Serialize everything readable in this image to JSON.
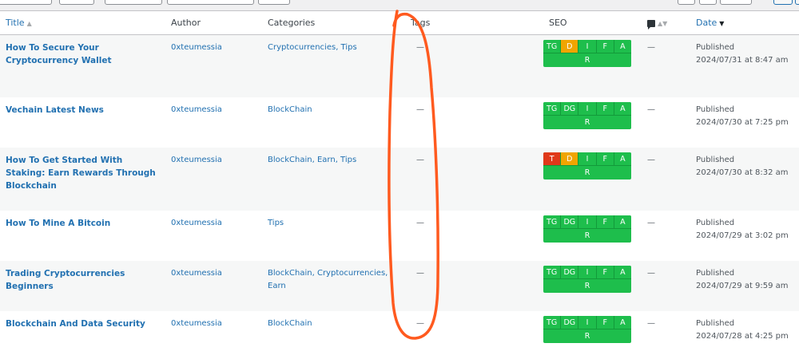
{
  "columns": {
    "title": "Title",
    "author": "Author",
    "categories": "Categories",
    "tags": "Tags",
    "seo": "SEO",
    "comments_icon": "comment-bubble-icon",
    "date": "Date"
  },
  "seo_colors": {
    "good": "#1ebe4c",
    "warning": "#f0a500",
    "bad": "#e0391a"
  },
  "annotation_color": "#ff5a1f",
  "rows": [
    {
      "title": "How To Secure Your Cryptocurrency Wallet",
      "author": "0xteumessia",
      "categories": "Cryptocurrencies, Tips",
      "tags": "—",
      "comments": "—",
      "status": "Published",
      "date": "2024/07/31 at 8:47 am",
      "seo": [
        {
          "label": "TG",
          "state": "good"
        },
        {
          "label": "D",
          "state": "warning"
        },
        {
          "label": "I",
          "state": "good"
        },
        {
          "label": "F",
          "state": "good"
        },
        {
          "label": "A",
          "state": "good"
        }
      ],
      "seo_r": "R"
    },
    {
      "title": "Vechain Latest News",
      "author": "0xteumessia",
      "categories": "BlockChain",
      "tags": "—",
      "comments": "—",
      "status": "Published",
      "date": "2024/07/30 at 7:25 pm",
      "seo": [
        {
          "label": "TG",
          "state": "good"
        },
        {
          "label": "DG",
          "state": "good"
        },
        {
          "label": "I",
          "state": "good"
        },
        {
          "label": "F",
          "state": "good"
        },
        {
          "label": "A",
          "state": "good"
        }
      ],
      "seo_r": "R"
    },
    {
      "title": "How To Get Started With Staking: Earn Rewards Through Blockchain",
      "author": "0xteumessia",
      "categories": "BlockChain, Earn, Tips",
      "tags": "—",
      "comments": "—",
      "status": "Published",
      "date": "2024/07/30 at 8:32 am",
      "seo": [
        {
          "label": "T",
          "state": "bad"
        },
        {
          "label": "D",
          "state": "warning"
        },
        {
          "label": "I",
          "state": "good"
        },
        {
          "label": "F",
          "state": "good"
        },
        {
          "label": "A",
          "state": "good"
        }
      ],
      "seo_r": "R"
    },
    {
      "title": "How To Mine A Bitcoin",
      "author": "0xteumessia",
      "categories": "Tips",
      "tags": "—",
      "comments": "—",
      "status": "Published",
      "date": "2024/07/29 at 3:02 pm",
      "seo": [
        {
          "label": "TG",
          "state": "good"
        },
        {
          "label": "DG",
          "state": "good"
        },
        {
          "label": "I",
          "state": "good"
        },
        {
          "label": "F",
          "state": "good"
        },
        {
          "label": "A",
          "state": "good"
        }
      ],
      "seo_r": "R"
    },
    {
      "title": "Trading Cryptocurrencies Beginners",
      "author": "0xteumessia",
      "categories": "BlockChain, Cryptocurrencies, Earn",
      "tags": "—",
      "comments": "—",
      "status": "Published",
      "date": "2024/07/29 at 9:59 am",
      "seo": [
        {
          "label": "TG",
          "state": "good"
        },
        {
          "label": "DG",
          "state": "good"
        },
        {
          "label": "I",
          "state": "good"
        },
        {
          "label": "F",
          "state": "good"
        },
        {
          "label": "A",
          "state": "good"
        }
      ],
      "seo_r": "R"
    },
    {
      "title": "Blockchain And Data Security",
      "author": "0xteumessia",
      "categories": "BlockChain",
      "tags": "—",
      "comments": "—",
      "status": "Published",
      "date": "2024/07/28 at 4:25 pm",
      "seo": [
        {
          "label": "TG",
          "state": "good"
        },
        {
          "label": "DG",
          "state": "good"
        },
        {
          "label": "I",
          "state": "good"
        },
        {
          "label": "F",
          "state": "good"
        },
        {
          "label": "A",
          "state": "good"
        }
      ],
      "seo_r": "R"
    }
  ]
}
